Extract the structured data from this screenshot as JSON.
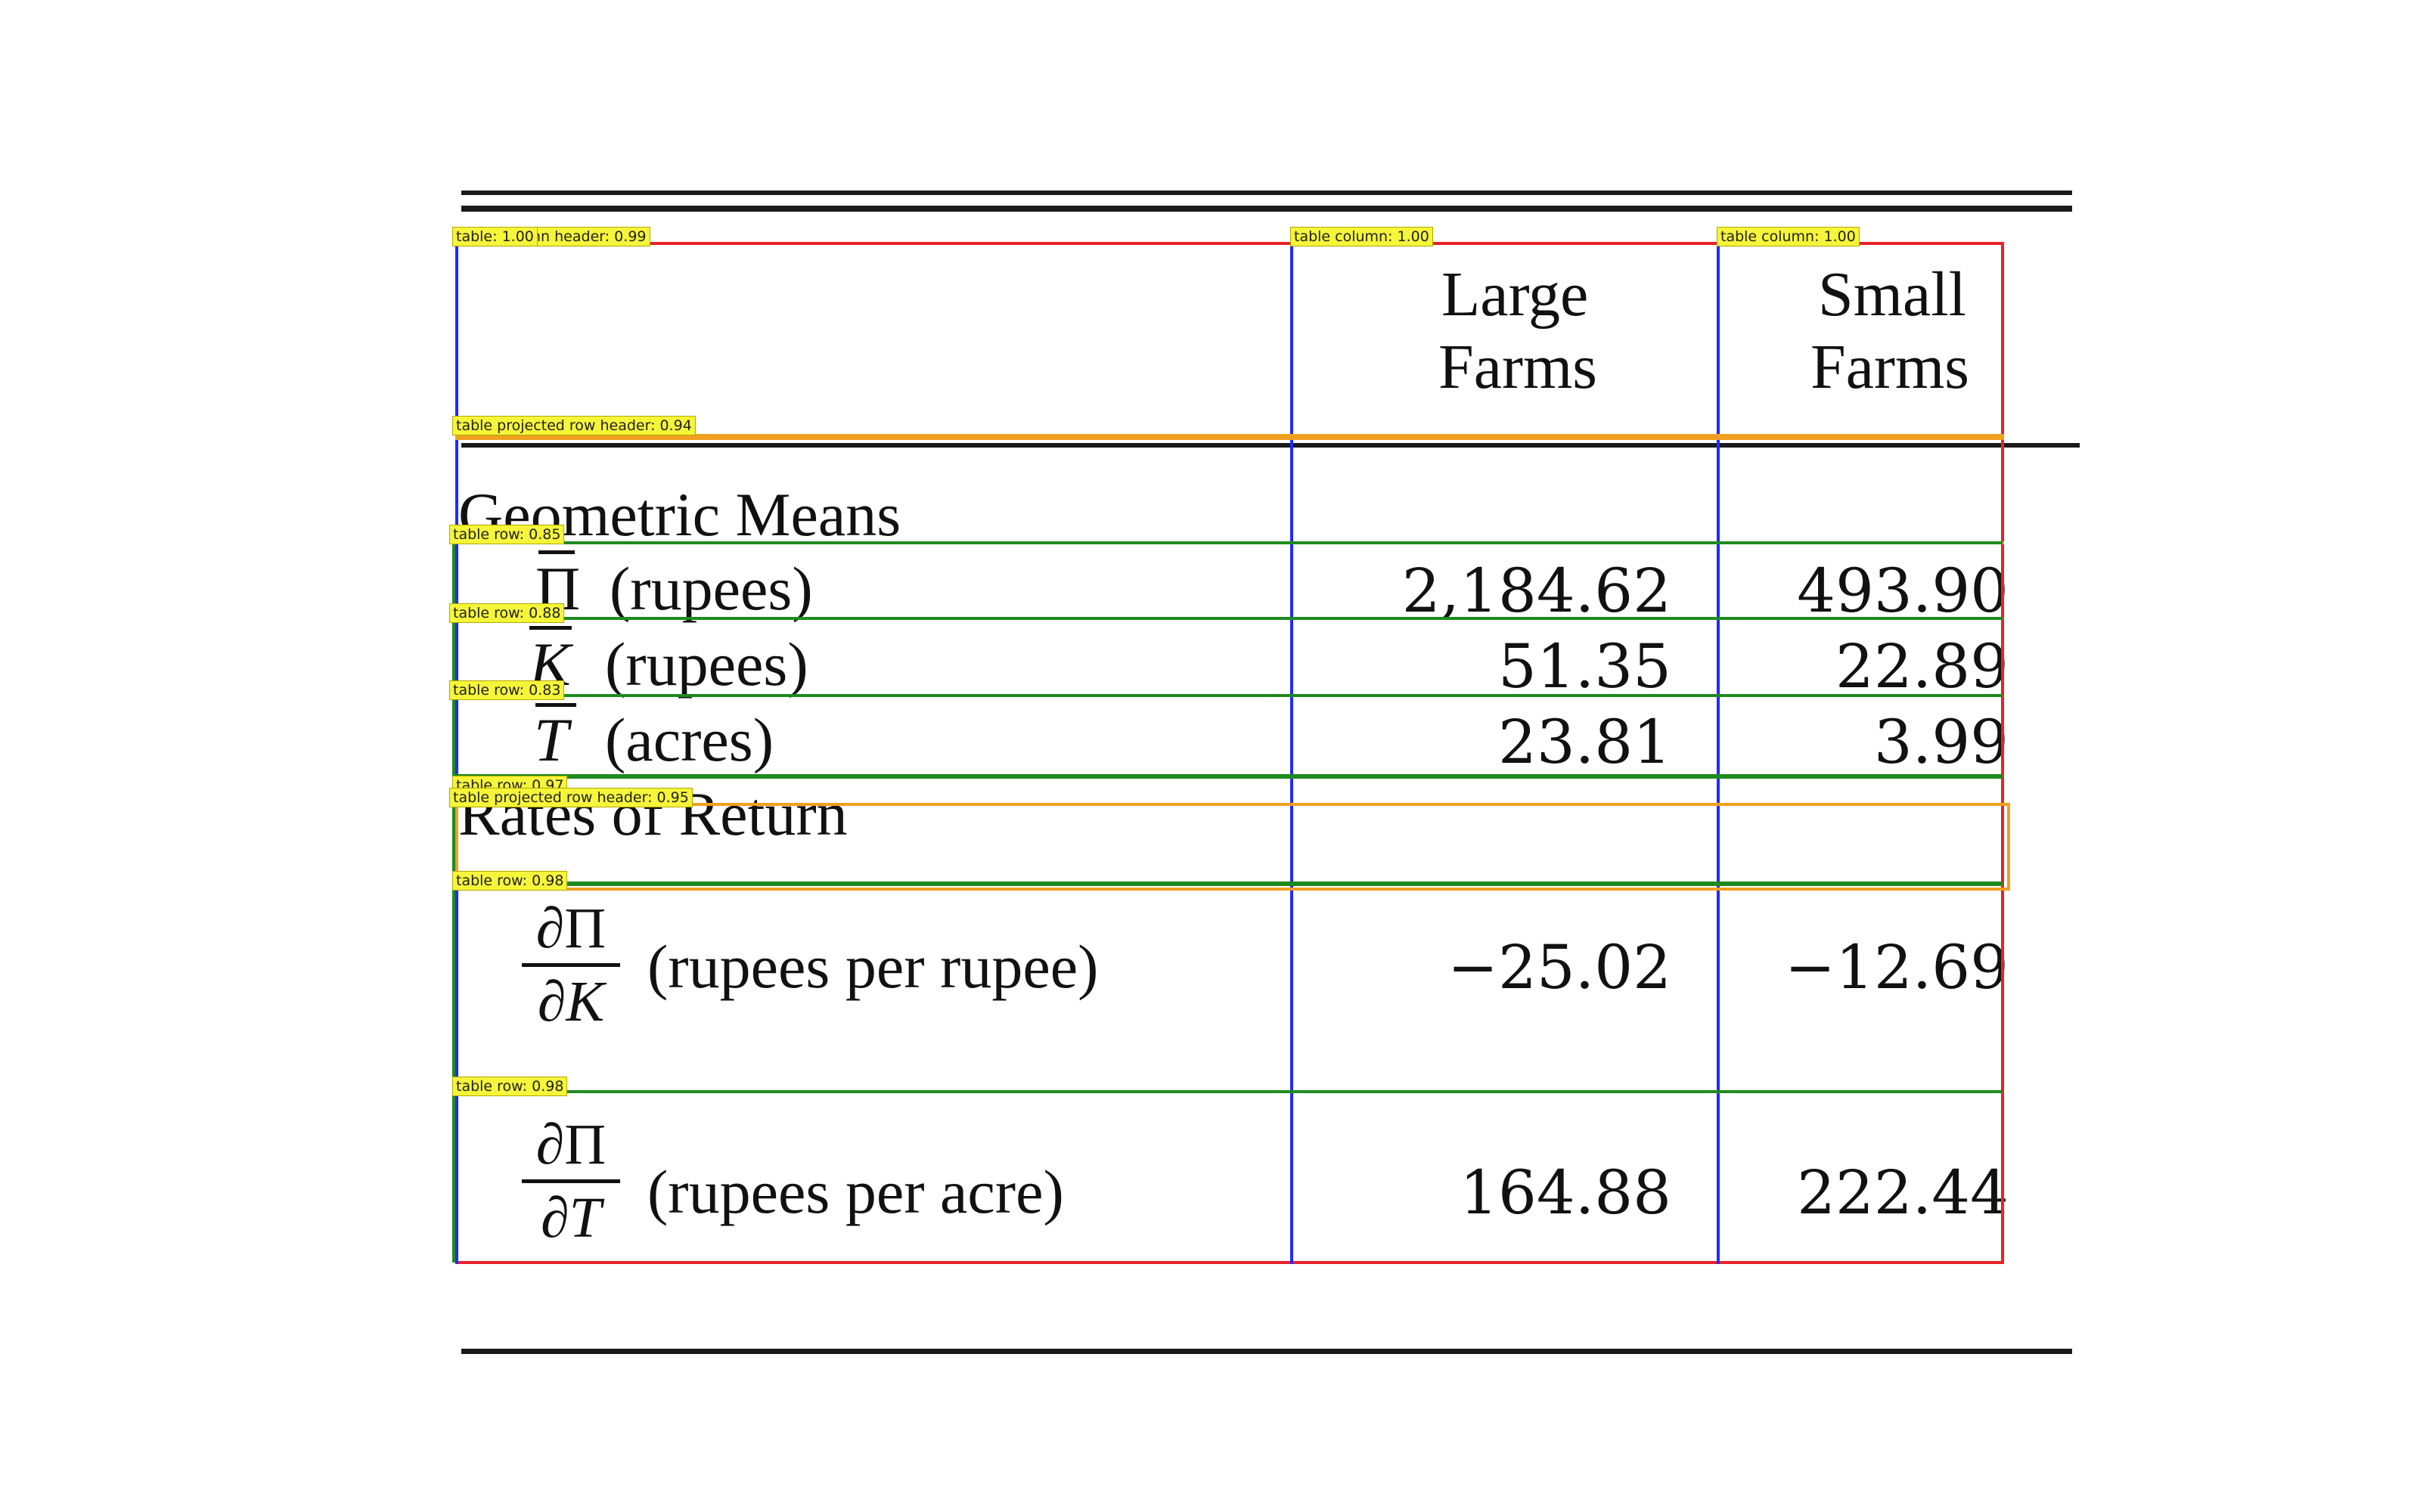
{
  "table": {
    "columns": [
      "Large\nFarms",
      "Small\nFarms"
    ],
    "column_headers": [
      {
        "line1": "Large",
        "line2": "Farms"
      },
      {
        "line1": "Small",
        "line2": "Farms"
      }
    ],
    "sections": [
      {
        "title": "Geometric Means",
        "rows": [
          {
            "symbol": "Π",
            "unit": "(rupees)",
            "large": "2,184.62",
            "small": "493.90"
          },
          {
            "symbol": "K",
            "unit": "(rupees)",
            "large": "51.35",
            "small": "22.89"
          },
          {
            "symbol": "T",
            "unit": "(acres)",
            "large": "23.81",
            "small": "3.99"
          }
        ]
      },
      {
        "title": "Rates of Return",
        "rows": [
          {
            "numerator": "∂Π",
            "denominator": "∂K",
            "unit": "(rupees per rupee)",
            "large": "−25.02",
            "small": "−12.69"
          },
          {
            "numerator": "∂Π",
            "denominator": "∂T",
            "unit": "(rupees per acre)",
            "large": "164.88",
            "small": "222.44"
          }
        ]
      }
    ]
  },
  "annotations": {
    "table": "table: 1.00",
    "column_header": "table column header: 0.99",
    "column_1": "table column: 1.00",
    "column_2": "table column: 1.00",
    "projected_row_header_1": "table projected row header: 0.94",
    "row_1": "table row: 0.85",
    "row_2": "table row: 0.88",
    "row_3": "table row: 0.83",
    "row_4": "table row: 0.97",
    "projected_row_header_2": "table projected row header: 0.95",
    "row_5": "table row: 0.98",
    "row_6": "table row: 0.98"
  },
  "colors": {
    "table_box": "#e8212b",
    "column_box": "#1f2bff",
    "row_box": "#1f8a1f",
    "projected_header_box": "#f0a020",
    "label_bg": "#f5f53a"
  }
}
